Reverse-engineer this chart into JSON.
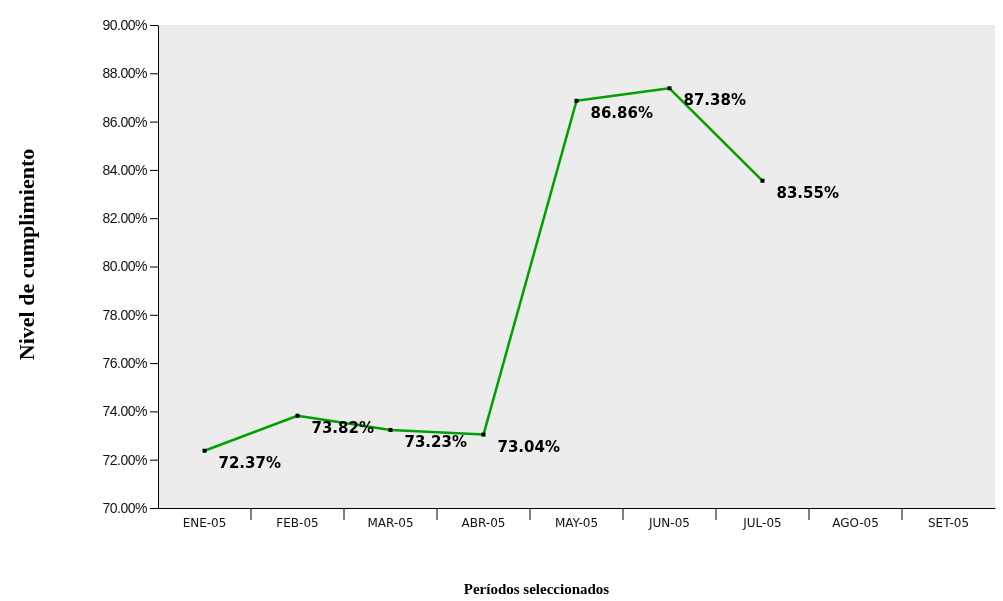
{
  "chart_data": {
    "type": "line",
    "xlabel": "Períodos seleccionados",
    "ylabel": "Nivel de cumplimiento",
    "categories": [
      "ENE-05",
      "FEB-05",
      "MAR-05",
      "ABR-05",
      "MAY-05",
      "JUN-05",
      "JUL-05",
      "AGO-05",
      "SET-05"
    ],
    "series": [
      {
        "color": "#00a000",
        "values": [
          72.37,
          73.82,
          73.23,
          73.04,
          86.86,
          87.38,
          83.55,
          null,
          null
        ],
        "value_labels": [
          "72.37%",
          "73.82%",
          "73.23%",
          "73.04%",
          "86.86%",
          "87.38%",
          "83.55%",
          null,
          null
        ]
      }
    ],
    "ylim": [
      70,
      90
    ],
    "yticks": [
      {
        "value": 70,
        "label": "70.00%"
      },
      {
        "value": 72,
        "label": "72.00%"
      },
      {
        "value": 74,
        "label": "74.00%"
      },
      {
        "value": 76,
        "label": "76.00%"
      },
      {
        "value": 78,
        "label": "78.00%"
      },
      {
        "value": 80,
        "label": "80.00%"
      },
      {
        "value": 82,
        "label": "82.00%"
      },
      {
        "value": 84,
        "label": "84.00%"
      },
      {
        "value": 86,
        "label": "86.00%"
      },
      {
        "value": 88,
        "label": "88.00%"
      },
      {
        "value": 90,
        "label": "90.00%"
      }
    ],
    "grid": false,
    "marker": "square",
    "line_style": "solid"
  }
}
